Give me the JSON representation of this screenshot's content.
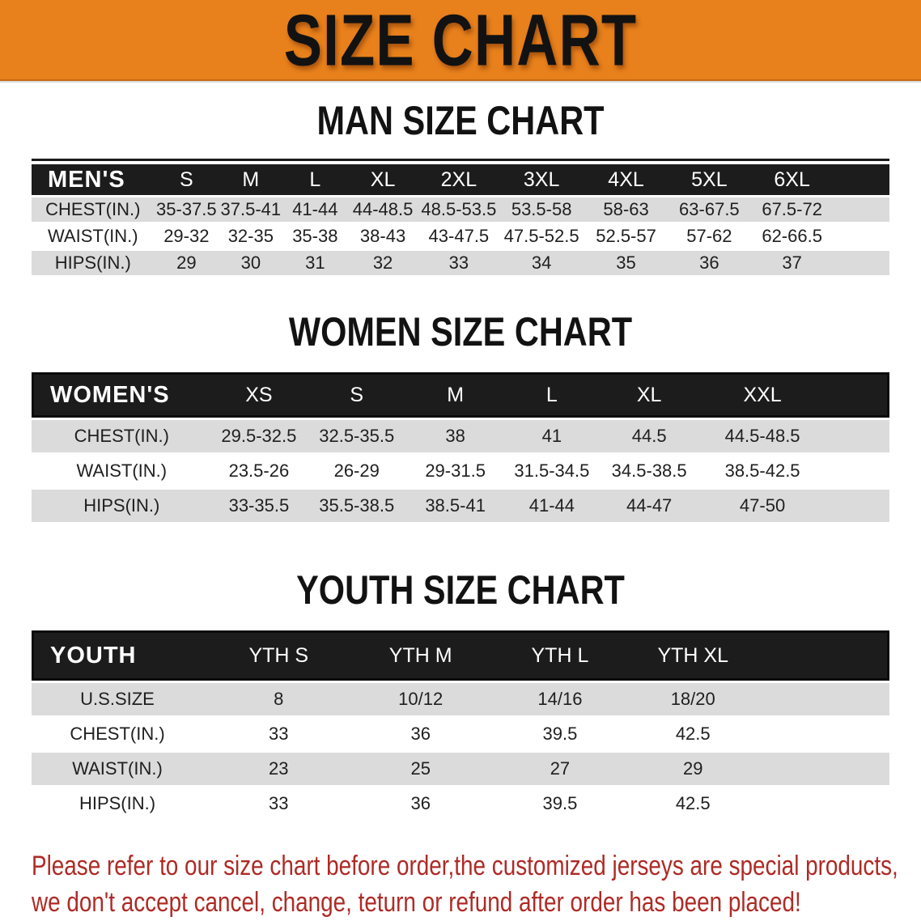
{
  "colors": {
    "banner_bg": "#E8811B",
    "banner_text": "#121212",
    "bar_bg": "#1D1C1C",
    "bar_border": "#0B0B0B",
    "row_stripe": "#DBDBDB",
    "table_text": "#1F1F1F",
    "footer_text": "#AE2B26"
  },
  "banner": {
    "title": "SIZE CHART"
  },
  "sections": {
    "men": {
      "title": "MAN SIZE CHART",
      "table": {
        "header": [
          "MEN'S",
          "S",
          "M",
          "L",
          "XL",
          "2XL",
          "3XL",
          "4XL",
          "5XL",
          "6XL"
        ],
        "rows": [
          [
            "CHEST(IN.)",
            "35-37.5",
            "37.5-41",
            "41-44",
            "44-48.5",
            "48.5-53.5",
            "53.5-58",
            "58-63",
            "63-67.5",
            "67.5-72"
          ],
          [
            "WAIST(IN.)",
            "29-32",
            "32-35",
            "35-38",
            "38-43",
            "43-47.5",
            "47.5-52.5",
            "52.5-57",
            "57-62",
            "62-66.5"
          ],
          [
            "HIPS(IN.)",
            "29",
            "30",
            "31",
            "32",
            "33",
            "34",
            "35",
            "36",
            "37"
          ]
        ]
      }
    },
    "women": {
      "title": "WOMEN SIZE CHART",
      "table": {
        "header": [
          "WOMEN'S",
          "XS",
          "S",
          "M",
          "L",
          "XL",
          "XXL"
        ],
        "rows": [
          [
            "CHEST(IN.)",
            "29.5-32.5",
            "32.5-35.5",
            "38",
            "41",
            "44.5",
            "44.5-48.5"
          ],
          [
            "WAIST(IN.)",
            "23.5-26",
            "26-29",
            "29-31.5",
            "31.5-34.5",
            "34.5-38.5",
            "38.5-42.5"
          ],
          [
            "HIPS(IN.)",
            "33-35.5",
            "35.5-38.5",
            "38.5-41",
            "41-44",
            "44-47",
            "47-50"
          ]
        ]
      }
    },
    "youth": {
      "title": "YOUTH SIZE CHART",
      "table": {
        "header": [
          "YOUTH",
          "YTH S",
          "YTH M",
          "YTH L",
          "YTH XL"
        ],
        "rows": [
          [
            "U.S.SIZE",
            "8",
            "10/12",
            "14/16",
            "18/20"
          ],
          [
            "CHEST(IN.)",
            "33",
            "36",
            "39.5",
            "42.5"
          ],
          [
            "WAIST(IN.)",
            "23",
            "25",
            "27",
            "29"
          ],
          [
            "HIPS(IN.)",
            "33",
            "36",
            "39.5",
            "42.5"
          ]
        ]
      }
    }
  },
  "footer": {
    "lines": [
      "Please refer to our size chart before order,the customized jerseys are special products,",
      "we don't accept cancel, change, teturn or refund after order has been placed!"
    ]
  }
}
